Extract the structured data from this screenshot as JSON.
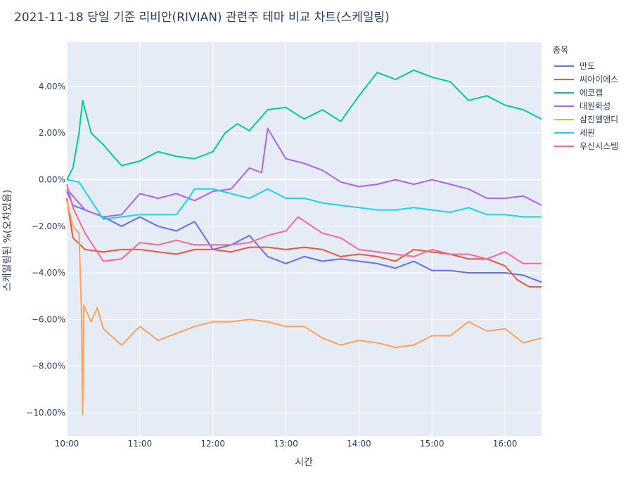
{
  "chart_data": {
    "type": "line",
    "title": "2021-11-18 당일 기준 리비안(RIVIAN) 관련주 테마 비교 차트(스케일링)",
    "xlabel": "시간",
    "ylabel": "스케일링된 %(오차있음)",
    "legend_title": "종목",
    "legend_position": "right",
    "grid": true,
    "x_start": "10:00",
    "x_end": "16:30",
    "xlim": [
      "10:00",
      "16:30"
    ],
    "x_ticks": [
      "10:00",
      "11:00",
      "12:00",
      "13:00",
      "14:00",
      "15:00",
      "16:00"
    ],
    "ylim": [
      -11.0,
      5.9
    ],
    "y_ticks": [
      -10,
      -8,
      -6,
      -4,
      -2,
      0,
      2,
      4
    ],
    "y_tick_labels": [
      "−10.00%",
      "−8.00%",
      "−6.00%",
      "−4.00%",
      "−2.00%",
      "0.00%",
      "2.00%",
      "4.00%"
    ],
    "series": [
      {
        "name": "만도",
        "color": "#636efa",
        "points": [
          [
            "10:00",
            -0.5
          ],
          [
            "10:05",
            -1.1
          ],
          [
            "10:15",
            -1.3
          ],
          [
            "10:30",
            -1.6
          ],
          [
            "10:45",
            -2.0
          ],
          [
            "11:00",
            -1.6
          ],
          [
            "11:15",
            -2.0
          ],
          [
            "11:30",
            -2.2
          ],
          [
            "11:45",
            -1.8
          ],
          [
            "12:00",
            -3.0
          ],
          [
            "12:15",
            -2.8
          ],
          [
            "12:30",
            -2.4
          ],
          [
            "12:45",
            -3.3
          ],
          [
            "13:00",
            -3.6
          ],
          [
            "13:15",
            -3.3
          ],
          [
            "13:30",
            -3.5
          ],
          [
            "13:45",
            -3.4
          ],
          [
            "14:00",
            -3.5
          ],
          [
            "14:15",
            -3.6
          ],
          [
            "14:30",
            -3.8
          ],
          [
            "14:45",
            -3.5
          ],
          [
            "15:00",
            -3.9
          ],
          [
            "15:15",
            -3.9
          ],
          [
            "15:30",
            -4.0
          ],
          [
            "15:45",
            -4.0
          ],
          [
            "16:00",
            -4.0
          ],
          [
            "16:15",
            -4.1
          ],
          [
            "16:30",
            -4.4
          ]
        ]
      },
      {
        "name": "씨아이에스",
        "color": "#ef553b",
        "points": [
          [
            "10:00",
            -0.8
          ],
          [
            "10:05",
            -2.5
          ],
          [
            "10:15",
            -3.0
          ],
          [
            "10:30",
            -3.1
          ],
          [
            "10:45",
            -3.0
          ],
          [
            "11:00",
            -3.0
          ],
          [
            "11:15",
            -3.1
          ],
          [
            "11:30",
            -3.2
          ],
          [
            "11:45",
            -3.0
          ],
          [
            "12:00",
            -3.0
          ],
          [
            "12:15",
            -3.1
          ],
          [
            "12:30",
            -2.9
          ],
          [
            "12:45",
            -2.9
          ],
          [
            "13:00",
            -3.0
          ],
          [
            "13:15",
            -2.9
          ],
          [
            "13:30",
            -3.0
          ],
          [
            "13:45",
            -3.3
          ],
          [
            "14:00",
            -3.2
          ],
          [
            "14:15",
            -3.3
          ],
          [
            "14:30",
            -3.5
          ],
          [
            "14:45",
            -3.0
          ],
          [
            "15:00",
            -3.1
          ],
          [
            "15:15",
            -3.2
          ],
          [
            "15:30",
            -3.4
          ],
          [
            "15:45",
            -3.4
          ],
          [
            "16:00",
            -3.7
          ],
          [
            "16:10",
            -4.3
          ],
          [
            "16:20",
            -4.6
          ],
          [
            "16:30",
            -4.6
          ]
        ]
      },
      {
        "name": "에코캡",
        "color": "#00cc96",
        "points": [
          [
            "10:00",
            0.0
          ],
          [
            "10:05",
            0.5
          ],
          [
            "10:10",
            2.0
          ],
          [
            "10:13",
            3.4
          ],
          [
            "10:20",
            2.0
          ],
          [
            "10:30",
            1.5
          ],
          [
            "10:45",
            0.6
          ],
          [
            "11:00",
            0.8
          ],
          [
            "11:15",
            1.2
          ],
          [
            "11:30",
            1.0
          ],
          [
            "11:45",
            0.9
          ],
          [
            "12:00",
            1.2
          ],
          [
            "12:10",
            2.0
          ],
          [
            "12:20",
            2.4
          ],
          [
            "12:30",
            2.1
          ],
          [
            "12:45",
            3.0
          ],
          [
            "13:00",
            3.1
          ],
          [
            "13:15",
            2.6
          ],
          [
            "13:30",
            3.0
          ],
          [
            "13:45",
            2.5
          ],
          [
            "14:00",
            3.6
          ],
          [
            "14:15",
            4.6
          ],
          [
            "14:30",
            4.3
          ],
          [
            "14:45",
            4.7
          ],
          [
            "15:00",
            4.4
          ],
          [
            "15:15",
            4.2
          ],
          [
            "15:30",
            3.4
          ],
          [
            "15:45",
            3.6
          ],
          [
            "16:00",
            3.2
          ],
          [
            "16:15",
            3.0
          ],
          [
            "16:30",
            2.6
          ]
        ]
      },
      {
        "name": "대원화성",
        "color": "#ab63fa",
        "points": [
          [
            "10:00",
            -0.4
          ],
          [
            "10:15",
            -1.3
          ],
          [
            "10:30",
            -1.6
          ],
          [
            "10:45",
            -1.5
          ],
          [
            "11:00",
            -0.6
          ],
          [
            "11:15",
            -0.8
          ],
          [
            "11:30",
            -0.6
          ],
          [
            "11:45",
            -0.9
          ],
          [
            "12:00",
            -0.5
          ],
          [
            "12:15",
            -0.4
          ],
          [
            "12:30",
            0.5
          ],
          [
            "12:40",
            0.3
          ],
          [
            "12:45",
            2.2
          ],
          [
            "13:00",
            0.9
          ],
          [
            "13:15",
            0.7
          ],
          [
            "13:30",
            0.4
          ],
          [
            "13:45",
            -0.1
          ],
          [
            "14:00",
            -0.3
          ],
          [
            "14:15",
            -0.2
          ],
          [
            "14:30",
            0.0
          ],
          [
            "14:45",
            -0.2
          ],
          [
            "15:00",
            0.0
          ],
          [
            "15:15",
            -0.2
          ],
          [
            "15:30",
            -0.4
          ],
          [
            "15:45",
            -0.8
          ],
          [
            "16:00",
            -0.8
          ],
          [
            "16:15",
            -0.7
          ],
          [
            "16:30",
            -1.1
          ]
        ]
      },
      {
        "name": "세원",
        "color": "#19d3f3",
        "points": [
          [
            "10:00",
            0.0
          ],
          [
            "10:10",
            -0.1
          ],
          [
            "10:15",
            -0.5
          ],
          [
            "10:30",
            -1.7
          ],
          [
            "10:45",
            -1.6
          ],
          [
            "11:00",
            -1.5
          ],
          [
            "11:15",
            -1.5
          ],
          [
            "11:30",
            -1.5
          ],
          [
            "11:40",
            -0.8
          ],
          [
            "11:45",
            -0.4
          ],
          [
            "12:00",
            -0.4
          ],
          [
            "12:15",
            -0.6
          ],
          [
            "12:30",
            -0.8
          ],
          [
            "12:45",
            -0.4
          ],
          [
            "13:00",
            -0.8
          ],
          [
            "13:15",
            -0.8
          ],
          [
            "13:30",
            -1.0
          ],
          [
            "13:45",
            -1.1
          ],
          [
            "14:00",
            -1.2
          ],
          [
            "14:15",
            -1.3
          ],
          [
            "14:30",
            -1.3
          ],
          [
            "14:45",
            -1.2
          ],
          [
            "15:00",
            -1.3
          ],
          [
            "15:15",
            -1.4
          ],
          [
            "15:30",
            -1.2
          ],
          [
            "15:45",
            -1.5
          ],
          [
            "16:00",
            -1.5
          ],
          [
            "16:15",
            -1.6
          ],
          [
            "16:30",
            -1.6
          ]
        ]
      },
      {
        "name": "우신시스템",
        "color": "#ff6692",
        "points": [
          [
            "10:00",
            -0.2
          ],
          [
            "10:05",
            -1.2
          ],
          [
            "10:15",
            -2.3
          ],
          [
            "10:30",
            -3.5
          ],
          [
            "10:45",
            -3.4
          ],
          [
            "11:00",
            -2.7
          ],
          [
            "11:15",
            -2.8
          ],
          [
            "11:30",
            -2.6
          ],
          [
            "11:45",
            -2.8
          ],
          [
            "12:00",
            -2.8
          ],
          [
            "12:15",
            -2.8
          ],
          [
            "12:30",
            -2.7
          ],
          [
            "12:45",
            -2.4
          ],
          [
            "13:00",
            -2.2
          ],
          [
            "13:10",
            -1.6
          ],
          [
            "13:30",
            -2.3
          ],
          [
            "13:45",
            -2.5
          ],
          [
            "14:00",
            -3.0
          ],
          [
            "14:15",
            -3.1
          ],
          [
            "14:30",
            -3.2
          ],
          [
            "14:45",
            -3.3
          ],
          [
            "15:00",
            -3.0
          ],
          [
            "15:15",
            -3.2
          ],
          [
            "15:30",
            -3.2
          ],
          [
            "15:45",
            -3.4
          ],
          [
            "16:00",
            -3.1
          ],
          [
            "16:15",
            -3.6
          ],
          [
            "16:30",
            -3.6
          ]
        ]
      },
      {
        "name": "삼진엘앤디",
        "color": "#ffa15a",
        "points": [
          [
            "10:00",
            -0.9
          ],
          [
            "10:05",
            -2.0
          ],
          [
            "10:10",
            -2.3
          ],
          [
            "10:12",
            -5.5
          ],
          [
            "10:13",
            -10.1
          ],
          [
            "10:14",
            -5.4
          ],
          [
            "10:20",
            -6.1
          ],
          [
            "10:25",
            -5.5
          ],
          [
            "10:30",
            -6.4
          ],
          [
            "10:45",
            -7.1
          ],
          [
            "11:00",
            -6.3
          ],
          [
            "11:15",
            -6.9
          ],
          [
            "11:30",
            -6.6
          ],
          [
            "11:45",
            -6.3
          ],
          [
            "12:00",
            -6.1
          ],
          [
            "12:15",
            -6.1
          ],
          [
            "12:30",
            -6.0
          ],
          [
            "12:45",
            -6.1
          ],
          [
            "13:00",
            -6.3
          ],
          [
            "13:15",
            -6.3
          ],
          [
            "13:30",
            -6.8
          ],
          [
            "13:45",
            -7.1
          ],
          [
            "14:00",
            -6.9
          ],
          [
            "14:15",
            -7.0
          ],
          [
            "14:30",
            -7.2
          ],
          [
            "14:45",
            -7.1
          ],
          [
            "15:00",
            -6.7
          ],
          [
            "15:15",
            -6.7
          ],
          [
            "15:30",
            -6.1
          ],
          [
            "15:45",
            -6.5
          ],
          [
            "16:00",
            -6.4
          ],
          [
            "16:15",
            -7.0
          ],
          [
            "16:30",
            -6.8
          ]
        ]
      }
    ]
  }
}
